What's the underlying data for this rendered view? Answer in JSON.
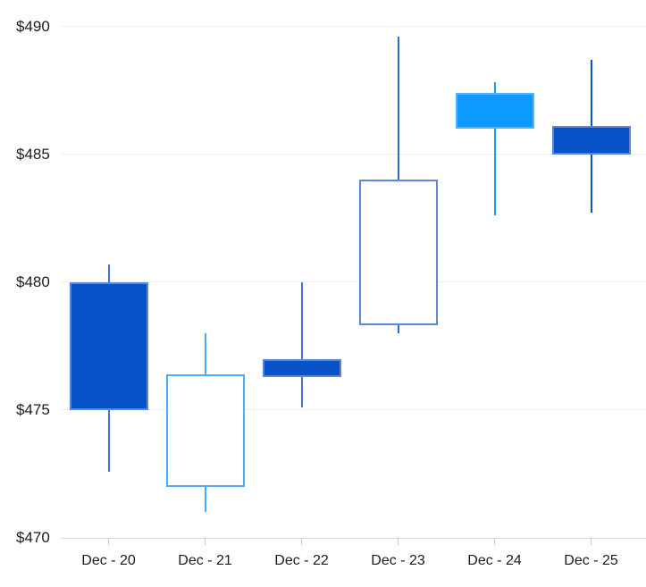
{
  "chart_data": {
    "type": "candlestick",
    "title": "",
    "y_axis": {
      "tick_labels": [
        "$490",
        "$485",
        "$480",
        "$475",
        "$470"
      ],
      "tick_values": [
        490,
        485,
        480,
        475,
        470
      ],
      "min": 470,
      "max": 490,
      "prefix": "$"
    },
    "categories": [
      "Dec - 20",
      "Dec - 21",
      "Dec - 22",
      "Dec - 23",
      "Dec - 24",
      "Dec - 25"
    ],
    "candles": [
      {
        "label": "Dec - 20",
        "open": 480.0,
        "high": 480.7,
        "low": 472.6,
        "close": 475.0,
        "direction": "down",
        "body": "solid",
        "fill": "#0752C6",
        "border": "#5B84DB",
        "wick": "#3D79DC"
      },
      {
        "label": "Dec - 21",
        "open": 472.0,
        "high": 478.0,
        "low": 471.0,
        "close": 476.4,
        "direction": "up",
        "body": "hollow",
        "fill": "#FFFFFF",
        "border": "#49ADFF",
        "wick": "#49ADFF"
      },
      {
        "label": "Dec - 22",
        "open": 477.0,
        "high": 480.0,
        "low": 475.1,
        "close": 476.3,
        "direction": "down",
        "body": "solid",
        "fill": "#0752C6",
        "border": "#5B84DB",
        "wick": "#3D79DC"
      },
      {
        "label": "Dec - 23",
        "open": 478.3,
        "high": 489.6,
        "low": 478.0,
        "close": 484.0,
        "direction": "up",
        "body": "hollow",
        "fill": "#FFFFFF",
        "border": "#5E86DC",
        "wick": "#3569D4"
      },
      {
        "label": "Dec - 24",
        "open": 487.4,
        "high": 487.8,
        "low": 482.6,
        "close": 486.0,
        "direction": "down",
        "body": "solid",
        "fill": "#0D99FF",
        "border": "#55B2FF",
        "wick": "#1E9BF2"
      },
      {
        "label": "Dec - 25",
        "open": 486.1,
        "high": 488.7,
        "low": 482.7,
        "close": 485.0,
        "direction": "down",
        "body": "solid",
        "fill": "#0752C6",
        "border": "#5B84DB",
        "wick": "#0A53C6"
      }
    ],
    "grid": true,
    "legend": false
  },
  "colors": {
    "background": "#FFFFFF",
    "grid_line": "#EFEFEF",
    "axis_line": "#DCDCDC",
    "tick_mark": "#C9C9C9",
    "label_text": "#1C1C1C"
  }
}
